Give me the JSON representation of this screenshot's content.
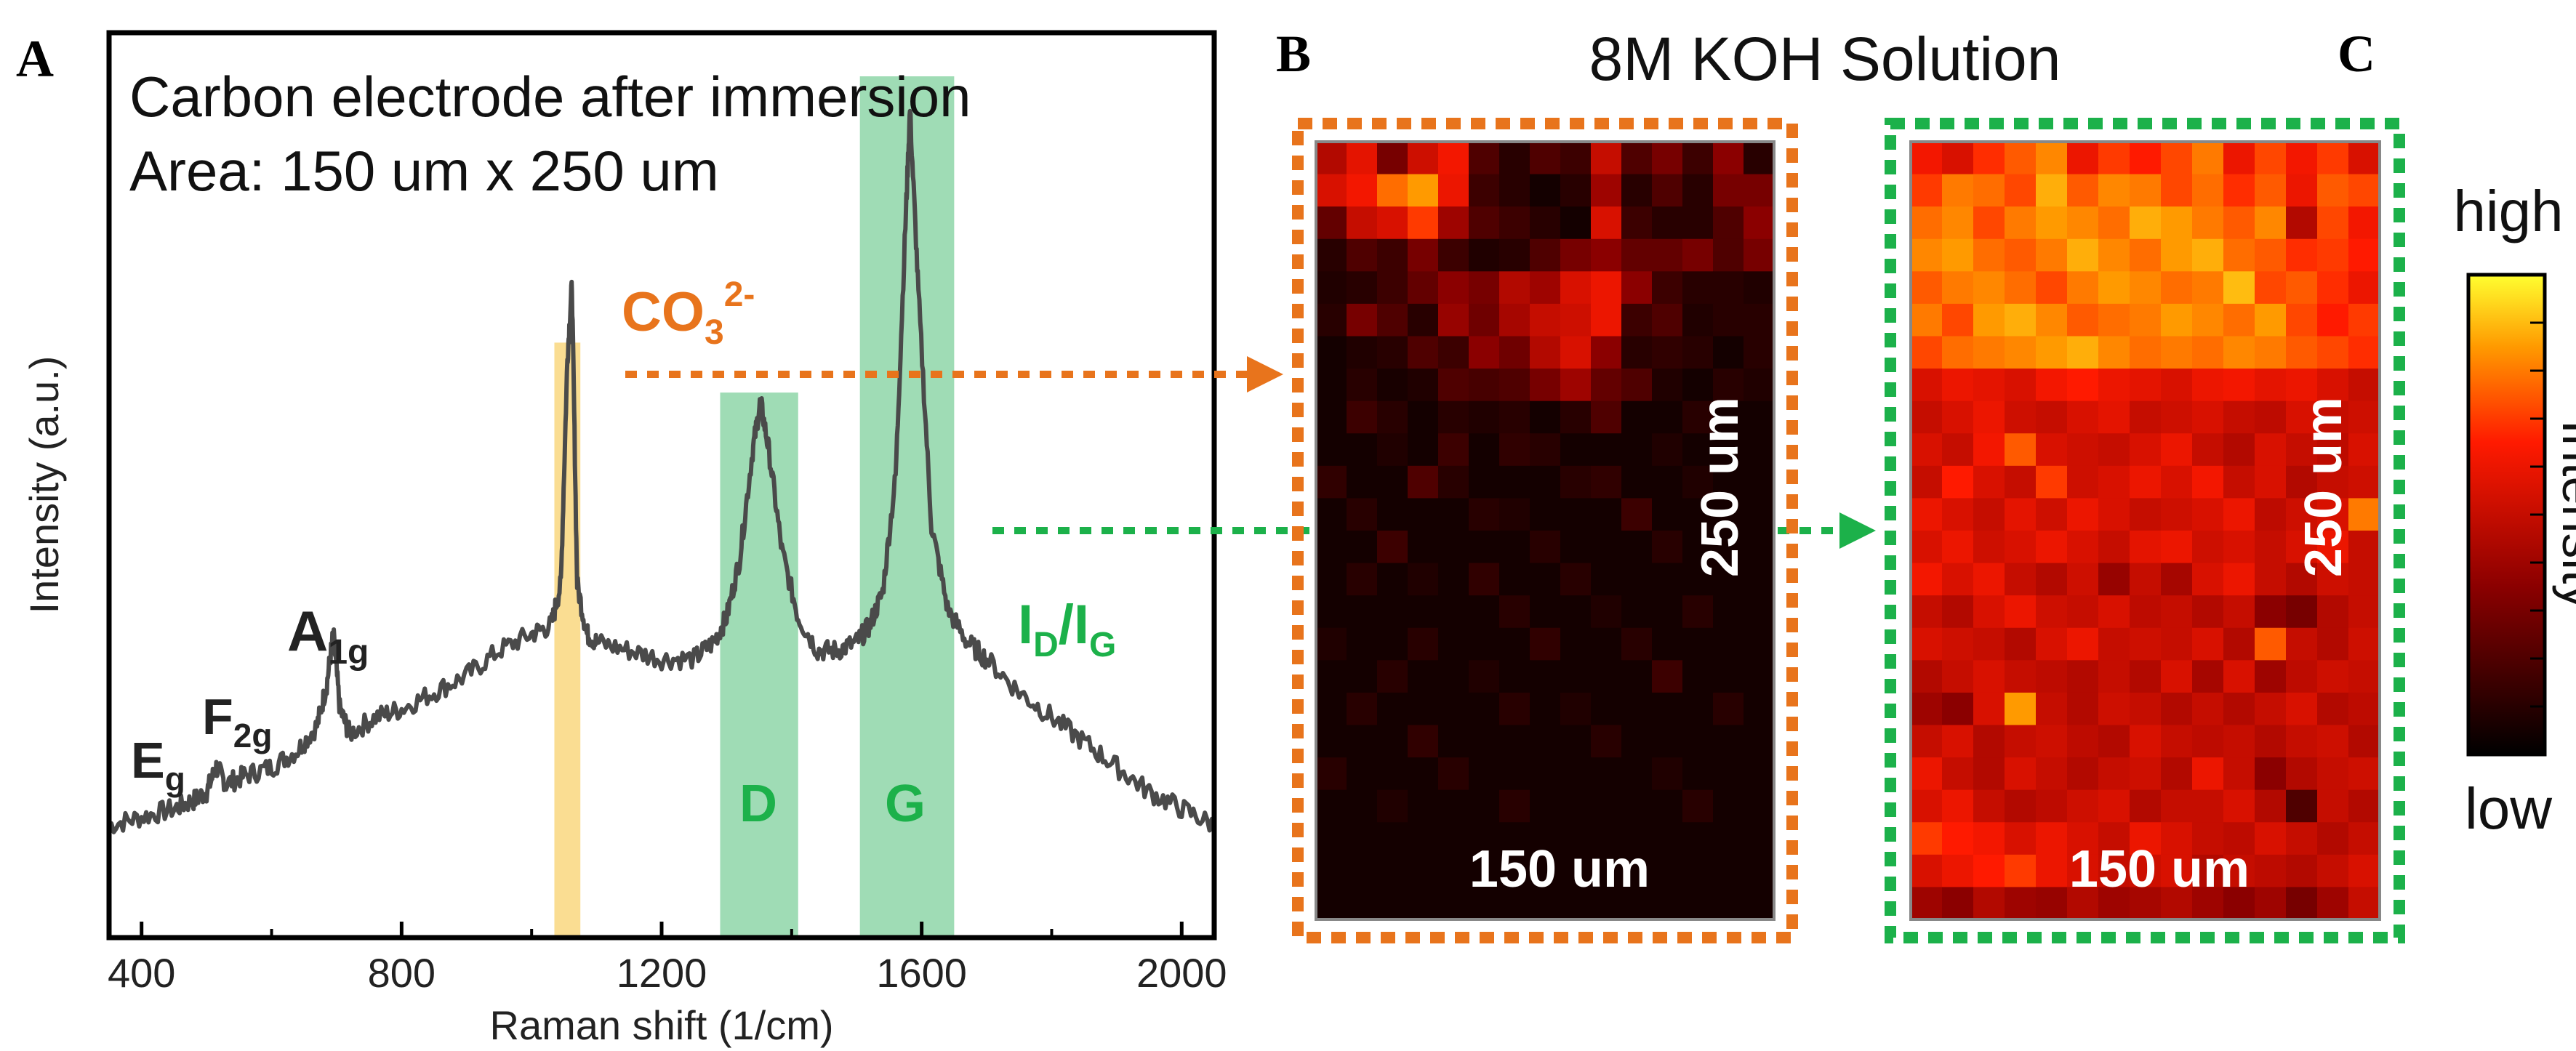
{
  "panel_labels": {
    "a": "A",
    "b": "B",
    "c": "C"
  },
  "figure_title": "8M KOH Solution",
  "colors": {
    "spectrum": "#4a4a4a",
    "carbonate_band": "#f9d77f",
    "carbon_band": "#8ed6a8",
    "orange_accent": "#e8741c",
    "green_accent": "#1cb14a"
  },
  "chart_data": [
    {
      "type": "line",
      "panel": "A",
      "annotation_lines": [
        "Carbon electrode after immersion",
        "Area: 150 um x 250 um"
      ],
      "xlabel": "Raman shift (1/cm)",
      "ylabel": "Intensity (a.u.)",
      "xlim": [
        350,
        2050
      ],
      "ylim": [
        0,
        1
      ],
      "xticks": [
        400,
        800,
        1200,
        1600,
        2000
      ],
      "yticks_shown": false,
      "series": [
        {
          "x": [
            350,
            400,
            450,
            480,
            500,
            515,
            530,
            560,
            600,
            640,
            670,
            685,
            695,
            705,
            720,
            760,
            800,
            850,
            900,
            950,
            1000,
            1030,
            1045,
            1055,
            1062,
            1070,
            1085,
            1100,
            1150,
            1200,
            1250,
            1280,
            1300,
            1320,
            1340,
            1352,
            1365,
            1385,
            1410,
            1440,
            1470,
            1500,
            1520,
            1540,
            1560,
            1575,
            1582,
            1595,
            1615,
            1640,
            1670,
            1700,
            1750,
            1800,
            1850,
            1900,
            1950,
            2000,
            2050
          ],
          "y": [
            0.1,
            0.11,
            0.12,
            0.13,
            0.14,
            0.17,
            0.15,
            0.16,
            0.17,
            0.19,
            0.22,
            0.27,
            0.33,
            0.24,
            0.21,
            0.23,
            0.24,
            0.26,
            0.28,
            0.31,
            0.33,
            0.34,
            0.39,
            0.66,
            0.75,
            0.39,
            0.33,
            0.32,
            0.31,
            0.3,
            0.3,
            0.32,
            0.35,
            0.42,
            0.55,
            0.61,
            0.55,
            0.43,
            0.35,
            0.31,
            0.31,
            0.32,
            0.34,
            0.38,
            0.52,
            0.82,
            0.96,
            0.74,
            0.46,
            0.36,
            0.32,
            0.3,
            0.26,
            0.23,
            0.2,
            0.17,
            0.14,
            0.12,
            0.1
          ]
        }
      ],
      "peak_labels": [
        {
          "base": "E",
          "sub": "g",
          "sup": "",
          "x": 420
        },
        {
          "base": "F",
          "sub": "2g",
          "sup": "",
          "x": 520
        },
        {
          "base": "A",
          "sub": "1g",
          "sup": "",
          "x": 690
        },
        {
          "base": "CO",
          "sub": "3",
          "sup": "2-",
          "x": 1150
        },
        {
          "base": "I",
          "sub": "D",
          "sup": "",
          "x": 1240
        },
        {
          "base": "I",
          "sub": "G",
          "sup": "",
          "x": 1300
        }
      ],
      "ratio_separator": "/",
      "bands": [
        {
          "name": "carbonate",
          "label": "",
          "x_range": [
            1035,
            1075
          ]
        },
        {
          "name": "D",
          "label": "D",
          "x_range": [
            1290,
            1410
          ]
        },
        {
          "name": "G",
          "label": "G",
          "x_range": [
            1505,
            1650
          ]
        }
      ]
    },
    {
      "type": "heatmap",
      "panel": "B",
      "mapped_quantity": "CO3 2-",
      "xlabel": "150 um",
      "ylabel": "250 um",
      "columns": 15,
      "rows": 24,
      "colormap": "black-red-yellow",
      "scale": "0 = low, 1 = high",
      "values": [
        [
          0.45,
          0.58,
          0.3,
          0.52,
          0.62,
          0.2,
          0.1,
          0.2,
          0.15,
          0.5,
          0.2,
          0.3,
          0.15,
          0.35,
          0.1
        ],
        [
          0.55,
          0.62,
          0.78,
          0.85,
          0.6,
          0.15,
          0.1,
          0.05,
          0.1,
          0.4,
          0.1,
          0.2,
          0.1,
          0.3,
          0.3
        ],
        [
          0.25,
          0.5,
          0.55,
          0.7,
          0.4,
          0.2,
          0.15,
          0.1,
          0.05,
          0.55,
          0.15,
          0.1,
          0.1,
          0.2,
          0.35
        ],
        [
          0.1,
          0.2,
          0.15,
          0.3,
          0.15,
          0.08,
          0.1,
          0.2,
          0.3,
          0.35,
          0.25,
          0.25,
          0.3,
          0.2,
          0.3
        ],
        [
          0.08,
          0.1,
          0.15,
          0.25,
          0.35,
          0.3,
          0.45,
          0.4,
          0.55,
          0.6,
          0.35,
          0.15,
          0.1,
          0.1,
          0.08
        ],
        [
          0.1,
          0.3,
          0.2,
          0.1,
          0.38,
          0.28,
          0.42,
          0.5,
          0.52,
          0.6,
          0.15,
          0.2,
          0.08,
          0.1,
          0.1
        ],
        [
          0.05,
          0.08,
          0.1,
          0.2,
          0.15,
          0.35,
          0.28,
          0.45,
          0.55,
          0.35,
          0.1,
          0.12,
          0.1,
          0.05,
          0.1
        ],
        [
          0.05,
          0.1,
          0.06,
          0.08,
          0.2,
          0.18,
          0.2,
          0.3,
          0.4,
          0.25,
          0.2,
          0.08,
          0.05,
          0.1,
          0.08
        ],
        [
          0.05,
          0.15,
          0.1,
          0.05,
          0.1,
          0.08,
          0.1,
          0.05,
          0.1,
          0.2,
          0.05,
          0.05,
          0.1,
          0.05,
          0.05
        ],
        [
          0.05,
          0.05,
          0.08,
          0.05,
          0.15,
          0.05,
          0.12,
          0.1,
          0.05,
          0.05,
          0.05,
          0.08,
          0.05,
          0.05,
          0.05
        ],
        [
          0.12,
          0.05,
          0.05,
          0.2,
          0.1,
          0.05,
          0.05,
          0.05,
          0.1,
          0.12,
          0.05,
          0.05,
          0.08,
          0.05,
          0.05
        ],
        [
          0.05,
          0.1,
          0.05,
          0.05,
          0.05,
          0.1,
          0.08,
          0.05,
          0.05,
          0.05,
          0.15,
          0.05,
          0.05,
          0.05,
          0.05
        ],
        [
          0.05,
          0.05,
          0.15,
          0.05,
          0.05,
          0.05,
          0.05,
          0.1,
          0.05,
          0.05,
          0.05,
          0.1,
          0.05,
          0.05,
          0.05
        ],
        [
          0.05,
          0.1,
          0.05,
          0.08,
          0.05,
          0.12,
          0.05,
          0.05,
          0.1,
          0.05,
          0.05,
          0.05,
          0.05,
          0.05,
          0.05
        ],
        [
          0.05,
          0.05,
          0.05,
          0.05,
          0.05,
          0.05,
          0.1,
          0.05,
          0.05,
          0.08,
          0.05,
          0.05,
          0.1,
          0.05,
          0.05
        ],
        [
          0.08,
          0.05,
          0.05,
          0.1,
          0.05,
          0.05,
          0.05,
          0.12,
          0.05,
          0.05,
          0.1,
          0.05,
          0.05,
          0.05,
          0.05
        ],
        [
          0.05,
          0.05,
          0.1,
          0.05,
          0.05,
          0.08,
          0.05,
          0.05,
          0.05,
          0.05,
          0.05,
          0.15,
          0.05,
          0.05,
          0.05
        ],
        [
          0.05,
          0.1,
          0.05,
          0.05,
          0.05,
          0.05,
          0.1,
          0.05,
          0.08,
          0.05,
          0.05,
          0.05,
          0.05,
          0.1,
          0.05
        ],
        [
          0.05,
          0.05,
          0.05,
          0.12,
          0.05,
          0.05,
          0.05,
          0.05,
          0.05,
          0.1,
          0.05,
          0.05,
          0.05,
          0.05,
          0.05
        ],
        [
          0.1,
          0.05,
          0.05,
          0.05,
          0.1,
          0.05,
          0.05,
          0.05,
          0.05,
          0.05,
          0.05,
          0.08,
          0.05,
          0.05,
          0.05
        ],
        [
          0.05,
          0.05,
          0.08,
          0.05,
          0.05,
          0.05,
          0.1,
          0.05,
          0.05,
          0.05,
          0.05,
          0.05,
          0.1,
          0.05,
          0.05
        ],
        [
          0.05,
          0.05,
          0.05,
          0.05,
          0.05,
          0.05,
          0.05,
          0.05,
          0.05,
          0.05,
          0.05,
          0.05,
          0.05,
          0.05,
          0.05
        ],
        [
          0.05,
          0.05,
          0.05,
          0.05,
          0.05,
          0.05,
          0.05,
          0.05,
          0.05,
          0.05,
          0.05,
          0.05,
          0.05,
          0.05,
          0.05
        ],
        [
          0.05,
          0.05,
          0.05,
          0.05,
          0.05,
          0.05,
          0.05,
          0.05,
          0.05,
          0.05,
          0.05,
          0.05,
          0.05,
          0.05,
          0.05
        ]
      ]
    },
    {
      "type": "heatmap",
      "panel": "C",
      "mapped_quantity": "ID/IG",
      "xlabel": "150 um",
      "ylabel": "250 um",
      "columns": 15,
      "rows": 24,
      "colormap": "black-red-yellow",
      "scale": "0 = low, 1 = high",
      "values": [
        [
          0.62,
          0.55,
          0.68,
          0.75,
          0.82,
          0.6,
          0.7,
          0.65,
          0.72,
          0.8,
          0.6,
          0.72,
          0.62,
          0.7,
          0.55
        ],
        [
          0.7,
          0.8,
          0.78,
          0.72,
          0.88,
          0.75,
          0.82,
          0.8,
          0.72,
          0.78,
          0.68,
          0.75,
          0.6,
          0.75,
          0.72
        ],
        [
          0.78,
          0.82,
          0.72,
          0.8,
          0.85,
          0.82,
          0.78,
          0.88,
          0.85,
          0.8,
          0.75,
          0.82,
          0.45,
          0.72,
          0.62
        ],
        [
          0.82,
          0.85,
          0.78,
          0.75,
          0.8,
          0.88,
          0.82,
          0.78,
          0.85,
          0.88,
          0.78,
          0.75,
          0.68,
          0.7,
          0.65
        ],
        [
          0.75,
          0.8,
          0.82,
          0.78,
          0.72,
          0.8,
          0.85,
          0.82,
          0.78,
          0.8,
          0.9,
          0.72,
          0.75,
          0.68,
          0.6
        ],
        [
          0.8,
          0.72,
          0.85,
          0.88,
          0.82,
          0.75,
          0.78,
          0.8,
          0.85,
          0.82,
          0.78,
          0.85,
          0.72,
          0.65,
          0.7
        ],
        [
          0.72,
          0.78,
          0.8,
          0.82,
          0.85,
          0.88,
          0.82,
          0.78,
          0.8,
          0.78,
          0.82,
          0.8,
          0.75,
          0.72,
          0.68
        ],
        [
          0.55,
          0.6,
          0.58,
          0.55,
          0.62,
          0.65,
          0.6,
          0.58,
          0.55,
          0.6,
          0.62,
          0.58,
          0.6,
          0.55,
          0.5
        ],
        [
          0.5,
          0.55,
          0.6,
          0.52,
          0.5,
          0.55,
          0.58,
          0.5,
          0.52,
          0.55,
          0.5,
          0.48,
          0.55,
          0.5,
          0.52
        ],
        [
          0.55,
          0.5,
          0.62,
          0.75,
          0.55,
          0.52,
          0.5,
          0.55,
          0.6,
          0.5,
          0.45,
          0.55,
          0.5,
          0.48,
          0.55
        ],
        [
          0.5,
          0.65,
          0.55,
          0.5,
          0.7,
          0.52,
          0.55,
          0.6,
          0.55,
          0.62,
          0.5,
          0.55,
          0.45,
          0.5,
          0.52
        ],
        [
          0.6,
          0.55,
          0.5,
          0.58,
          0.52,
          0.6,
          0.55,
          0.5,
          0.52,
          0.55,
          0.6,
          0.48,
          0.52,
          0.55,
          0.8
        ],
        [
          0.55,
          0.6,
          0.52,
          0.55,
          0.6,
          0.55,
          0.5,
          0.58,
          0.6,
          0.52,
          0.55,
          0.5,
          0.55,
          0.6,
          0.5
        ],
        [
          0.62,
          0.55,
          0.6,
          0.5,
          0.45,
          0.52,
          0.38,
          0.5,
          0.42,
          0.55,
          0.6,
          0.5,
          0.45,
          0.52,
          0.5
        ],
        [
          0.5,
          0.45,
          0.55,
          0.6,
          0.52,
          0.5,
          0.55,
          0.48,
          0.5,
          0.45,
          0.5,
          0.35,
          0.3,
          0.45,
          0.5
        ],
        [
          0.55,
          0.52,
          0.5,
          0.45,
          0.55,
          0.6,
          0.5,
          0.52,
          0.5,
          0.55,
          0.45,
          0.75,
          0.5,
          0.45,
          0.52
        ],
        [
          0.45,
          0.5,
          0.55,
          0.5,
          0.48,
          0.45,
          0.5,
          0.45,
          0.55,
          0.42,
          0.55,
          0.4,
          0.48,
          0.52,
          0.5
        ],
        [
          0.4,
          0.35,
          0.55,
          0.85,
          0.5,
          0.45,
          0.52,
          0.5,
          0.45,
          0.5,
          0.45,
          0.5,
          0.55,
          0.45,
          0.48
        ],
        [
          0.5,
          0.55,
          0.45,
          0.5,
          0.52,
          0.48,
          0.45,
          0.55,
          0.5,
          0.48,
          0.5,
          0.45,
          0.5,
          0.52,
          0.45
        ],
        [
          0.6,
          0.5,
          0.45,
          0.55,
          0.5,
          0.45,
          0.5,
          0.52,
          0.45,
          0.6,
          0.5,
          0.35,
          0.45,
          0.5,
          0.52
        ],
        [
          0.55,
          0.6,
          0.5,
          0.45,
          0.48,
          0.52,
          0.55,
          0.45,
          0.5,
          0.5,
          0.55,
          0.45,
          0.2,
          0.5,
          0.45
        ],
        [
          0.7,
          0.65,
          0.62,
          0.55,
          0.6,
          0.55,
          0.5,
          0.6,
          0.55,
          0.5,
          0.48,
          0.55,
          0.5,
          0.45,
          0.5
        ],
        [
          0.55,
          0.6,
          0.65,
          0.7,
          0.6,
          0.55,
          0.5,
          0.52,
          0.55,
          0.45,
          0.5,
          0.48,
          0.45,
          0.5,
          0.55
        ],
        [
          0.4,
          0.35,
          0.45,
          0.4,
          0.38,
          0.45,
          0.4,
          0.42,
          0.45,
          0.4,
          0.35,
          0.4,
          0.3,
          0.4,
          0.5
        ]
      ]
    }
  ],
  "colorbar": {
    "high_label": "high",
    "low_label": "low",
    "title": "Intensity"
  }
}
